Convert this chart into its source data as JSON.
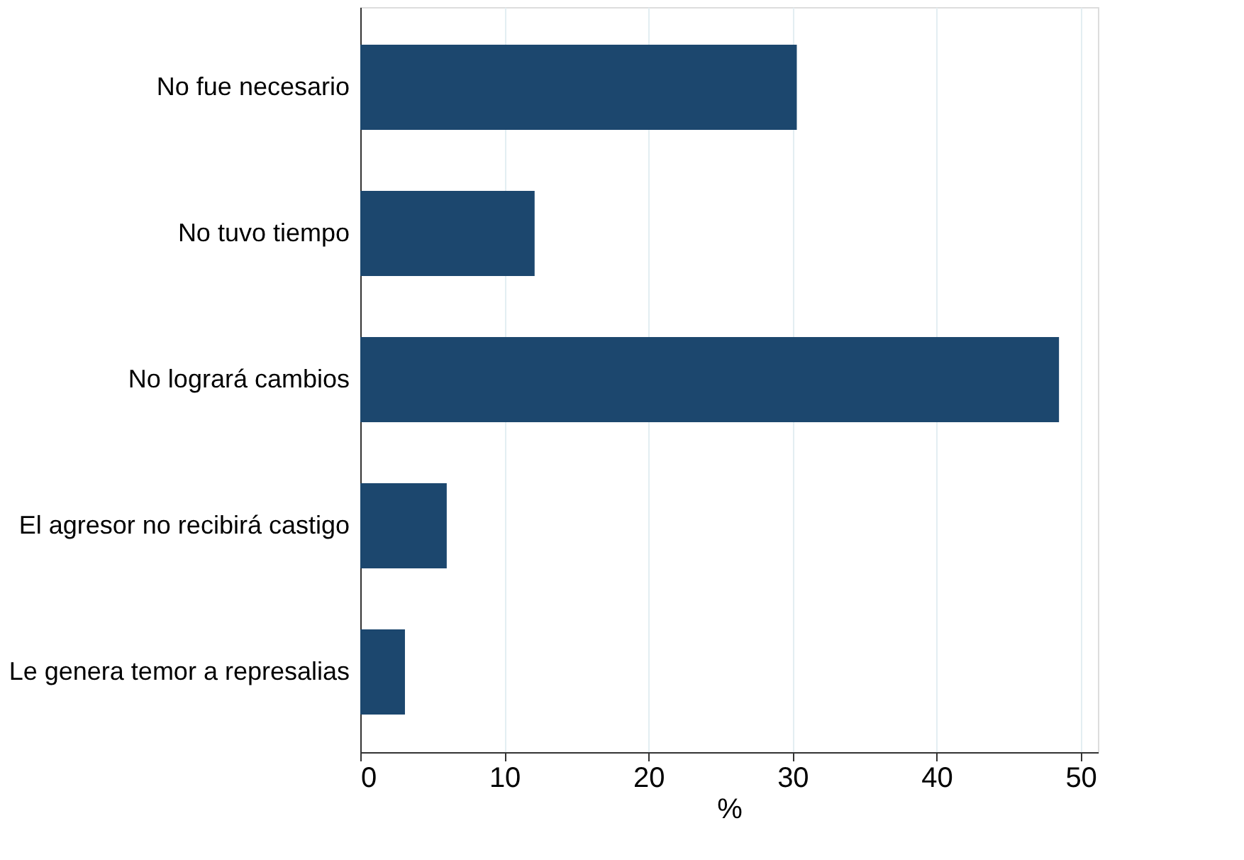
{
  "chart_data": {
    "type": "bar",
    "orientation": "horizontal",
    "xlabel": "%",
    "categories": [
      "No fue necesario",
      "No tuvo tiempo",
      "No logrará cambios",
      "El agresor no recibirá castigo",
      "Le genera temor a represalias"
    ],
    "values": [
      30.3,
      12.1,
      48.5,
      6.0,
      3.1
    ],
    "color": "#1c476e",
    "xlim": [
      0,
      51.2
    ],
    "xticks": [
      0,
      10,
      20,
      30,
      40,
      50
    ],
    "grid": "x"
  }
}
